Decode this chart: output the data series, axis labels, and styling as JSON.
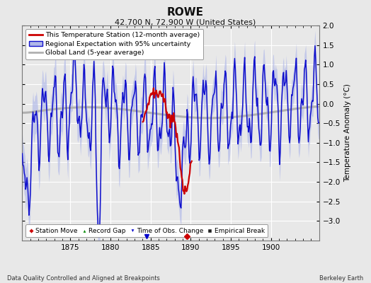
{
  "title": "ROWE",
  "subtitle": "42.700 N, 72.900 W (United States)",
  "footer_left": "Data Quality Controlled and Aligned at Breakpoints",
  "footer_right": "Berkeley Earth",
  "ylabel": "Temperature Anomaly (°C)",
  "xlim": [
    1869,
    1906
  ],
  "ylim": [
    -3.5,
    2.0
  ],
  "yticks": [
    -3,
    -2.5,
    -2,
    -1.5,
    -1,
    -0.5,
    0,
    0.5,
    1,
    1.5,
    2
  ],
  "xticks": [
    1875,
    1880,
    1885,
    1890,
    1895,
    1900
  ],
  "bg_color": "#e8e8e8",
  "plot_bg_color": "#e8e8e8",
  "grid_color": "#ffffff",
  "regional_fill_color": "#b0b8e8",
  "regional_line_color": "#1010cc",
  "station_line_color": "#cc0000",
  "global_line_color": "#b0b0b0",
  "station_move_color": "#cc0000",
  "record_gap_color": "#008800",
  "time_obs_marker_color": "#0000cc",
  "empirical_break_color": "#222222",
  "legend_entries": [
    "This Temperature Station (12-month average)",
    "Regional Expectation with 95% uncertainty",
    "Global Land (5-year average)"
  ],
  "bottom_legend_entries": [
    "Station Move",
    "Record Gap",
    "Time of Obs. Change",
    "Empirical Break"
  ],
  "station_move_x": 1889.5,
  "time_obs_x": 1884.5,
  "seed": 7
}
